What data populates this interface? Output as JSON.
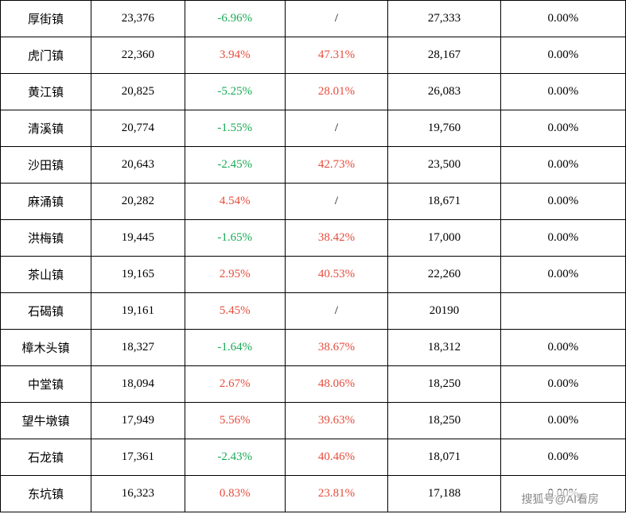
{
  "table": {
    "colors": {
      "border": "#000000",
      "text_default": "#000000",
      "text_positive": "#e74c3c",
      "text_negative": "#1aaa55",
      "background": "#ffffff"
    },
    "columns": [
      {
        "key": "name",
        "width_pct": 14.5,
        "align": "center"
      },
      {
        "key": "val1",
        "width_pct": 15,
        "align": "center"
      },
      {
        "key": "pct1",
        "width_pct": 16,
        "align": "center"
      },
      {
        "key": "pct2",
        "width_pct": 16.5,
        "align": "center"
      },
      {
        "key": "val2",
        "width_pct": 18,
        "align": "center"
      },
      {
        "key": "pct3",
        "width_pct": 20,
        "align": "center"
      }
    ],
    "rows": [
      {
        "name": "厚街镇",
        "val1": "23,376",
        "pct1": "-6.96%",
        "pct1_color": "green",
        "pct2": "/",
        "pct2_color": "",
        "val2": "27,333",
        "pct3": "0.00%"
      },
      {
        "name": "虎门镇",
        "val1": "22,360",
        "pct1": "3.94%",
        "pct1_color": "red",
        "pct2": "47.31%",
        "pct2_color": "red",
        "val2": "28,167",
        "pct3": "0.00%"
      },
      {
        "name": "黄江镇",
        "val1": "20,825",
        "pct1": "-5.25%",
        "pct1_color": "green",
        "pct2": "28.01%",
        "pct2_color": "red",
        "val2": "26,083",
        "pct3": "0.00%"
      },
      {
        "name": "清溪镇",
        "val1": "20,774",
        "pct1": "-1.55%",
        "pct1_color": "green",
        "pct2": "/",
        "pct2_color": "",
        "val2": "19,760",
        "pct3": "0.00%"
      },
      {
        "name": "沙田镇",
        "val1": "20,643",
        "pct1": "-2.45%",
        "pct1_color": "green",
        "pct2": "42.73%",
        "pct2_color": "red",
        "val2": "23,500",
        "pct3": "0.00%"
      },
      {
        "name": "麻涌镇",
        "val1": "20,282",
        "pct1": "4.54%",
        "pct1_color": "red",
        "pct2": "/",
        "pct2_color": "",
        "val2": "18,671",
        "pct3": "0.00%"
      },
      {
        "name": "洪梅镇",
        "val1": "19,445",
        "pct1": "-1.65%",
        "pct1_color": "green",
        "pct2": "38.42%",
        "pct2_color": "red",
        "val2": "17,000",
        "pct3": "0.00%"
      },
      {
        "name": "茶山镇",
        "val1": "19,165",
        "pct1": "2.95%",
        "pct1_color": "red",
        "pct2": "40.53%",
        "pct2_color": "red",
        "val2": "22,260",
        "pct3": "0.00%"
      },
      {
        "name": "石碣镇",
        "val1": "19,161",
        "pct1": "5.45%",
        "pct1_color": "red",
        "pct2": "/",
        "pct2_color": "",
        "val2": "20190",
        "pct3": ""
      },
      {
        "name": "樟木头镇",
        "val1": "18,327",
        "pct1": "-1.64%",
        "pct1_color": "green",
        "pct2": "38.67%",
        "pct2_color": "red",
        "val2": "18,312",
        "pct3": "0.00%"
      },
      {
        "name": "中堂镇",
        "val1": "18,094",
        "pct1": "2.67%",
        "pct1_color": "red",
        "pct2": "48.06%",
        "pct2_color": "red",
        "val2": "18,250",
        "pct3": "0.00%"
      },
      {
        "name": "望牛墩镇",
        "val1": "17,949",
        "pct1": "5.56%",
        "pct1_color": "red",
        "pct2": "39.63%",
        "pct2_color": "red",
        "val2": "18,250",
        "pct3": "0.00%"
      },
      {
        "name": "石龙镇",
        "val1": "17,361",
        "pct1": "-2.43%",
        "pct1_color": "green",
        "pct2": "40.46%",
        "pct2_color": "red",
        "val2": "18,071",
        "pct3": "0.00%"
      },
      {
        "name": "东坑镇",
        "val1": "16,323",
        "pct1": "0.83%",
        "pct1_color": "red",
        "pct2": "23.81%",
        "pct2_color": "red",
        "val2": "17,188",
        "pct3": "0.00%"
      }
    ]
  },
  "watermark": "搜狐号@AI看房"
}
